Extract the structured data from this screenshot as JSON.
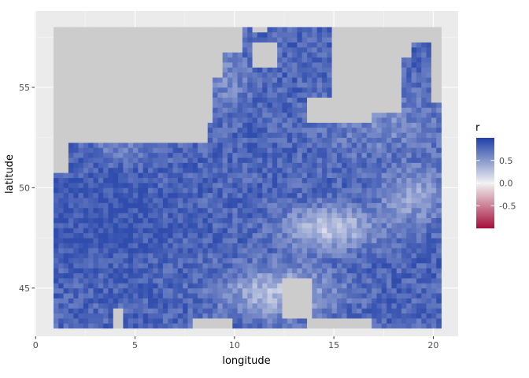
{
  "chart_data": {
    "type": "heatmap",
    "title": "",
    "xlabel": "longitude",
    "ylabel": "latitude",
    "xlim": [
      -0.05,
      21.25
    ],
    "ylim": [
      42.6,
      58.8
    ],
    "x_ticks": [
      0,
      5,
      10,
      15,
      20
    ],
    "x_tick_labels": [
      "0",
      "5",
      "10",
      "15",
      "20"
    ],
    "y_ticks": [
      45,
      50,
      55
    ],
    "y_tick_labels": [
      "45",
      "50",
      "55"
    ],
    "grid": true,
    "grid_domain": {
      "lon_range": [
        0.9,
        20.4
      ],
      "lat_range": [
        43.0,
        58.1
      ],
      "lon_step": 0.25,
      "lat_step": 0.25
    },
    "missing_color": "#cccccc",
    "panel_background": "#ebebeb",
    "color_scale": {
      "name": "r",
      "low": "#a50f3a",
      "mid": "#f2f2f2",
      "high": "#1f3fa8",
      "range": [
        -1,
        1
      ],
      "legend_breaks": [
        0.5,
        0.0,
        -0.5
      ],
      "legend_labels": [
        "0.5",
        "0.0",
        "-0.5"
      ]
    },
    "legend": {
      "position": "right"
    }
  }
}
